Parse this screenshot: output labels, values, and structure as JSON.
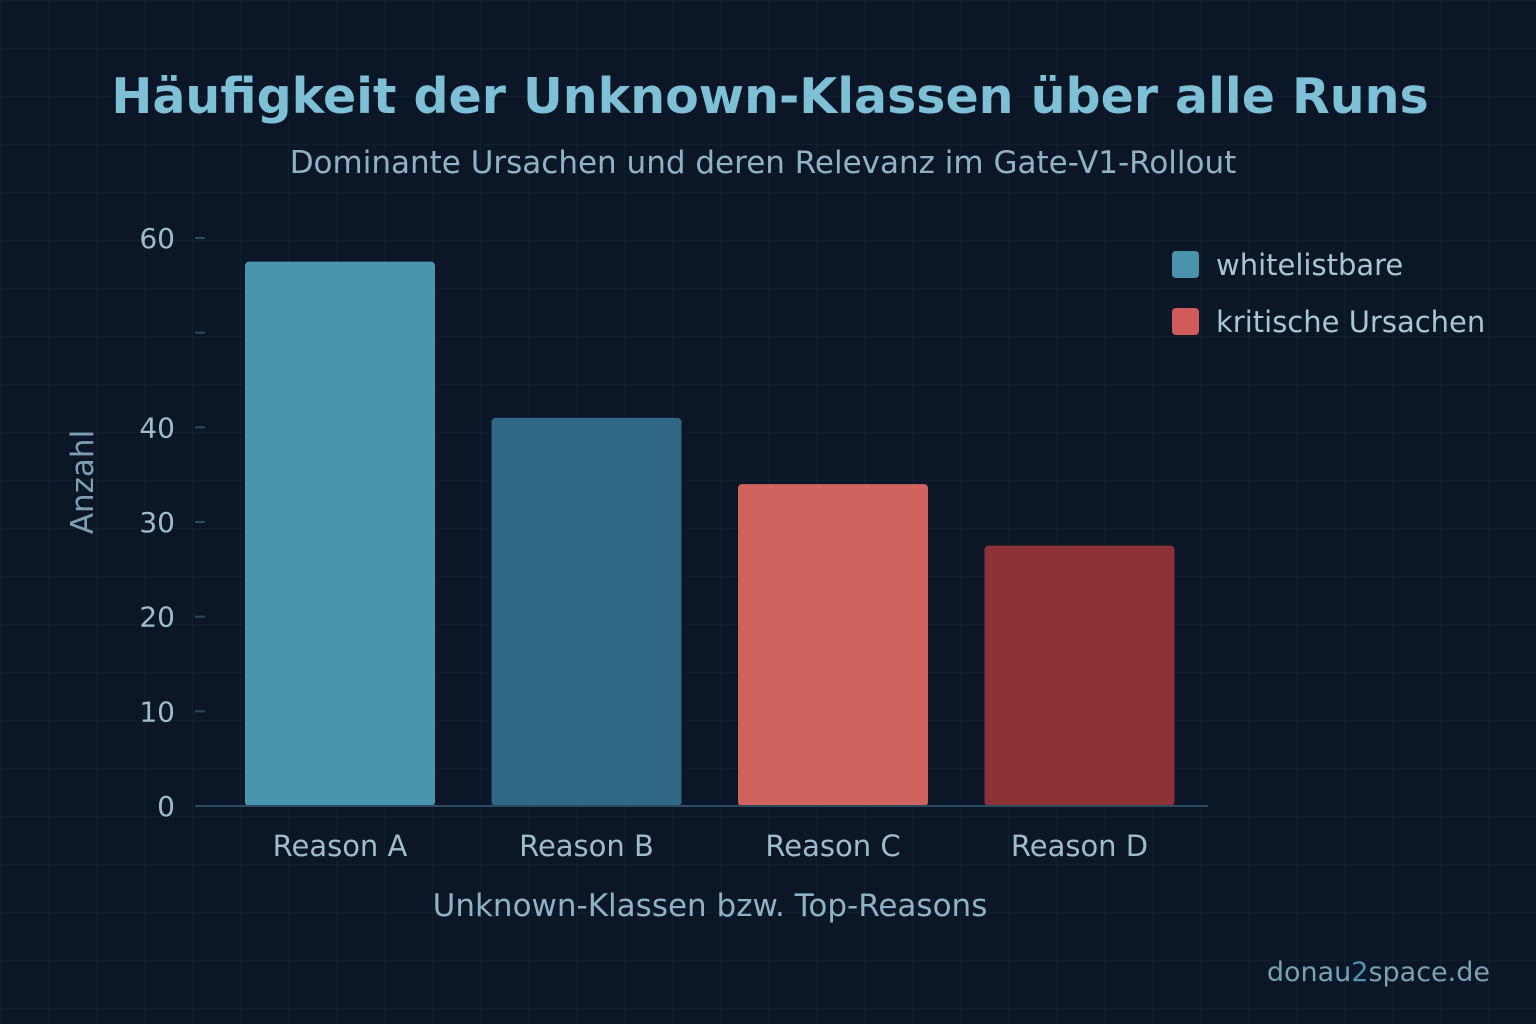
{
  "chart_data": {
    "type": "bar",
    "title": "Häufigkeit der Unknown-Klassen über alle Runs",
    "subtitle": "Dominante Ursachen und deren Relevanz im Gate-V1-Rollout",
    "xlabel": "Unknown-Klassen bzw. Top-Reasons",
    "ylabel": "Anzahl",
    "ylim": [
      0,
      60
    ],
    "yticks": [
      0,
      10,
      20,
      30,
      40,
      50,
      60
    ],
    "ytick_labels": [
      "0",
      "10",
      "20",
      "30",
      "40",
      "",
      "60"
    ],
    "grid": false,
    "categories": [
      "Reason A",
      "Reason B",
      "Reason C",
      "Reason D"
    ],
    "values": [
      57.5,
      41,
      34,
      27.5
    ],
    "bar_colors": [
      "#4895ae",
      "#2e6884",
      "#d1635f",
      "#8c3236"
    ],
    "legend_position": "top-right",
    "legend": [
      {
        "label": "whitelistbare",
        "color": "#4a93ad"
      },
      {
        "label": "kritische Ursachen",
        "color": "#d05b58"
      }
    ]
  },
  "colors": {
    "background": "#0b1626",
    "title": "#7ec0d6",
    "subtitle": "#8fb3c4",
    "axis_text": "#9fbccb",
    "axis_line": "#2c4a60"
  },
  "footer": {
    "brand_prefix": "donau",
    "brand_accent": "2",
    "brand_suffix": "space.de"
  }
}
